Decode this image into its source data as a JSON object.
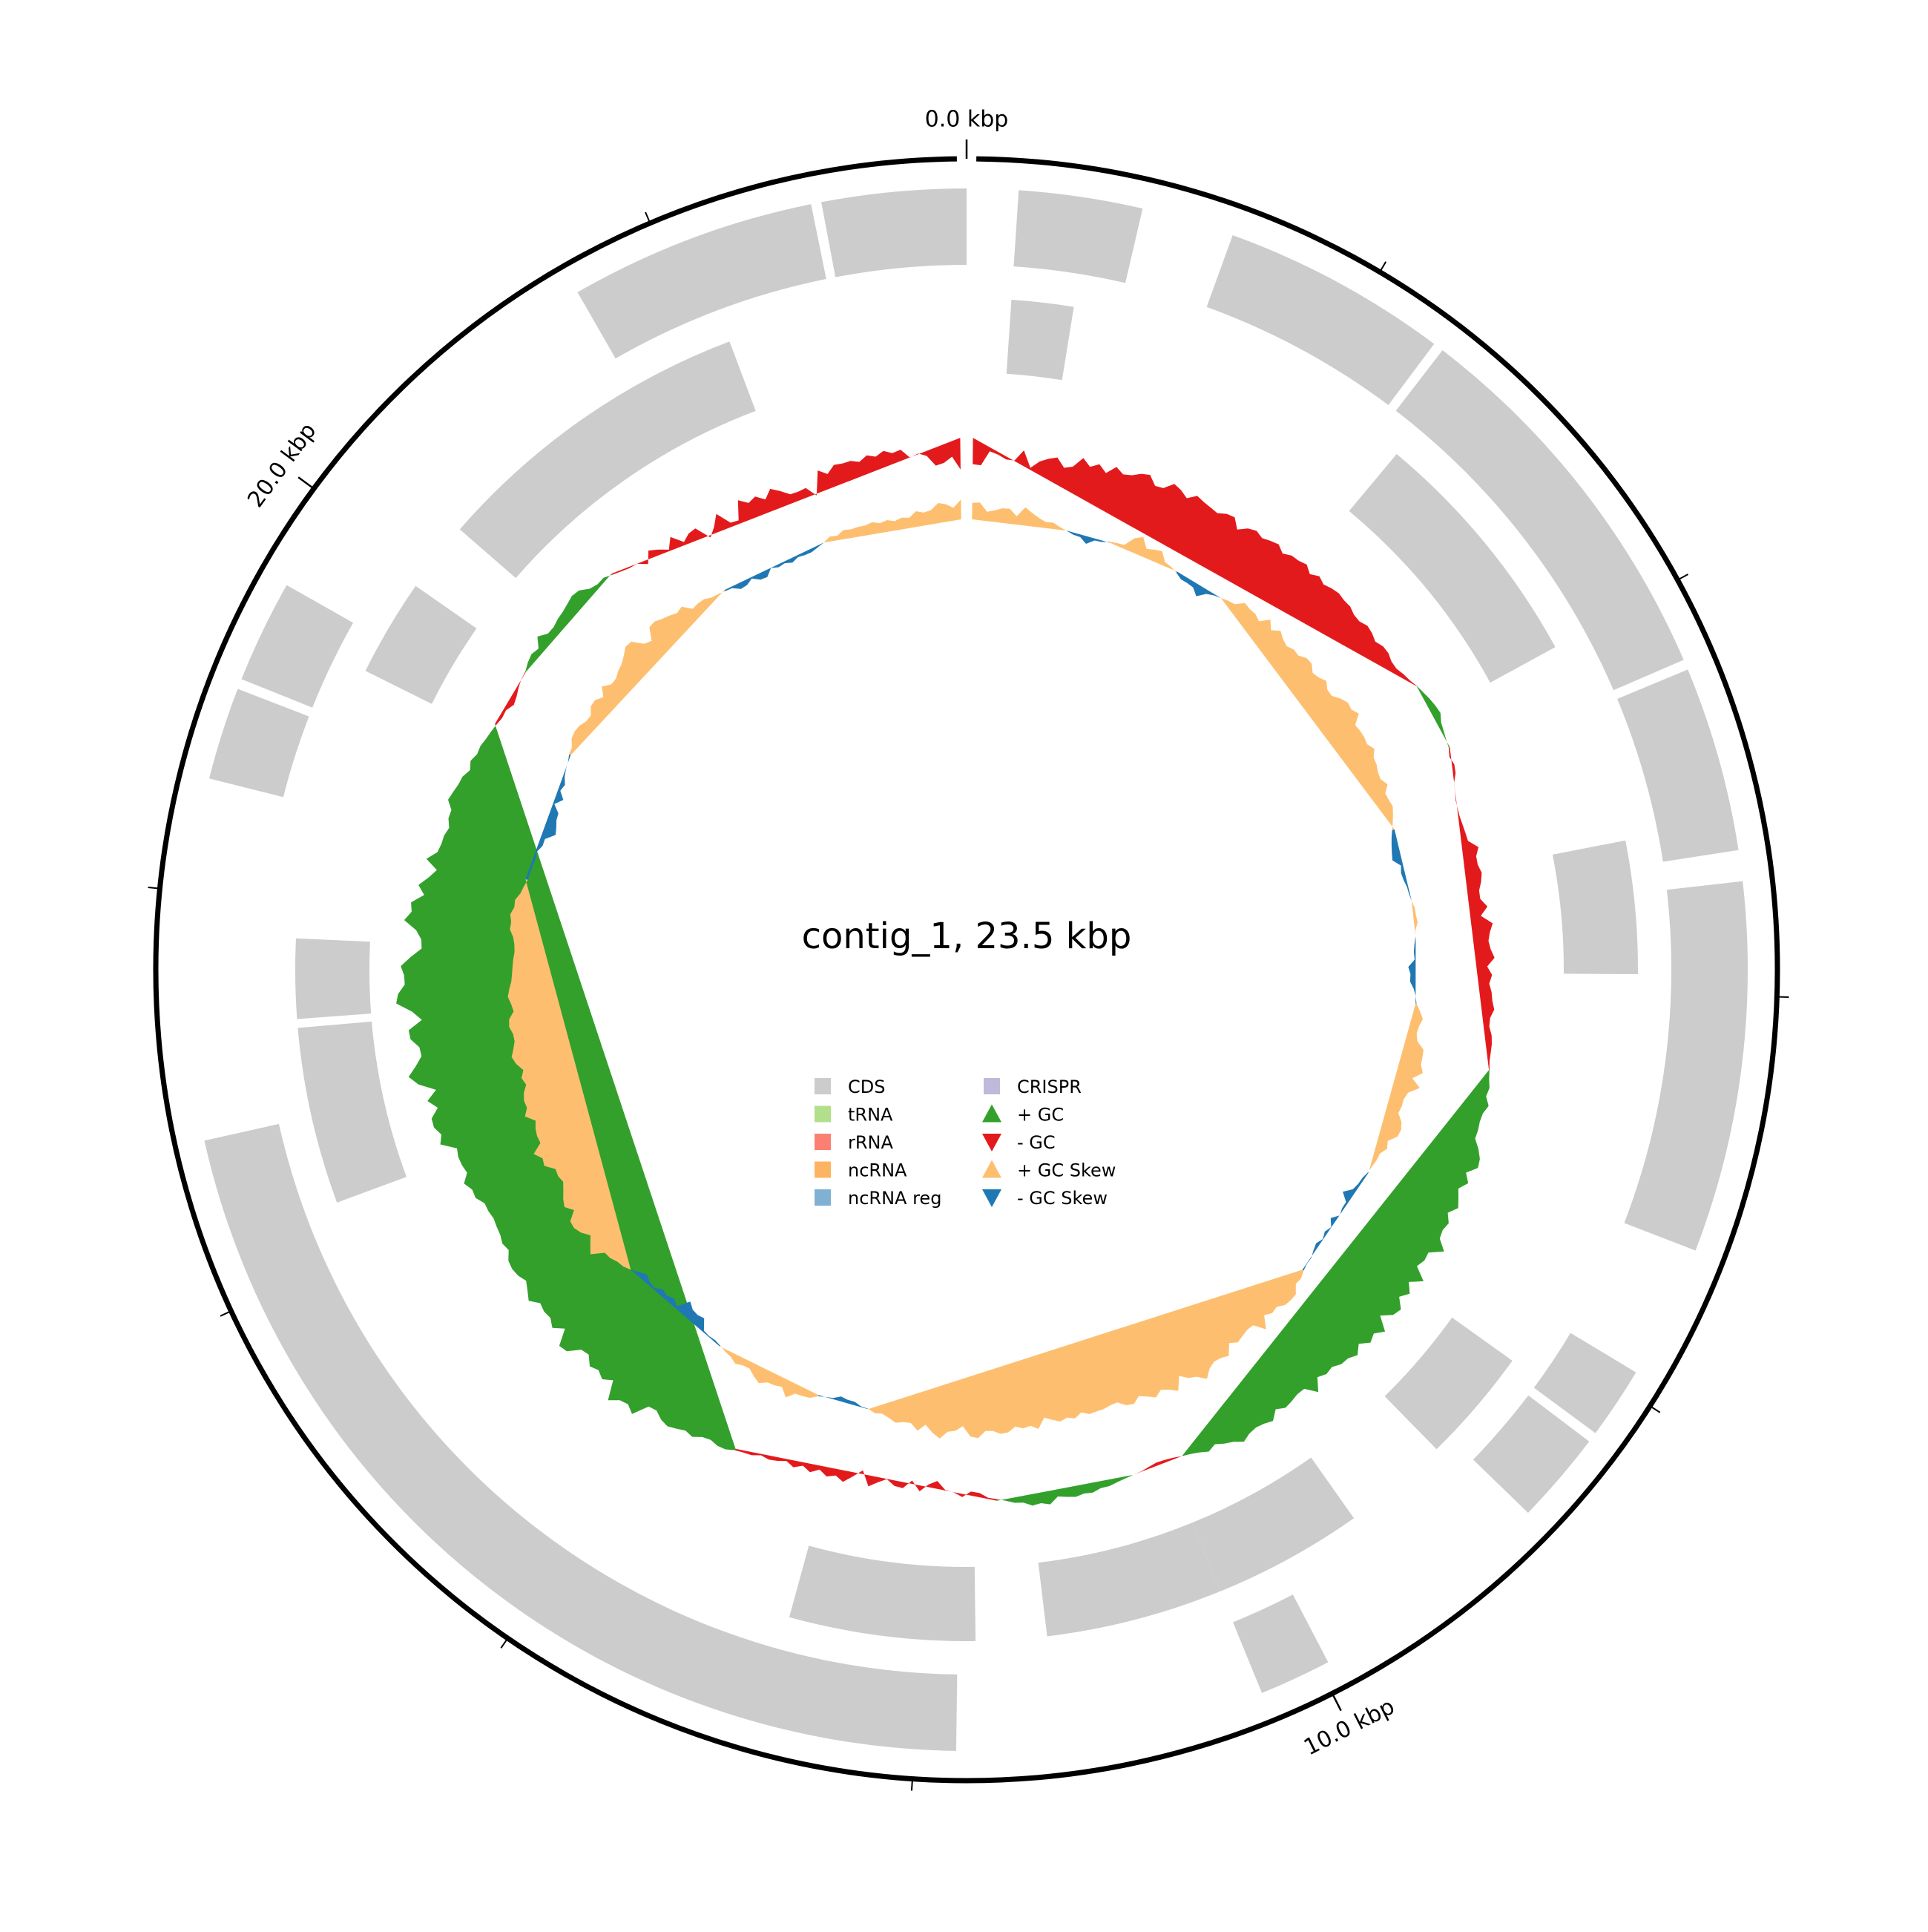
{
  "title": "contig_1, 23.5 kbp",
  "chart_data": {
    "type": "circular-genome-map",
    "genome_length_kbp": 23.5,
    "contig": "contig_1",
    "axis": {
      "major_tick_labels": [
        "0.0 kbp",
        "10.0 kbp",
        "20.0 kbp"
      ],
      "major_tick_positions_kbp": [
        0,
        10,
        20
      ],
      "minor_tick_step_kbp": 2
    },
    "cds_features": [
      {
        "start_kbp": 0.25,
        "end_kbp": 0.85,
        "track": "outer"
      },
      {
        "start_kbp": 1.3,
        "end_kbp": 2.4,
        "track": "outer"
      },
      {
        "start_kbp": 2.45,
        "end_kbp": 4.35,
        "track": "outer"
      },
      {
        "start_kbp": 4.4,
        "end_kbp": 5.3,
        "track": "outer"
      },
      {
        "start_kbp": 5.45,
        "end_kbp": 7.25,
        "track": "outer"
      },
      {
        "start_kbp": 7.9,
        "end_kbp": 8.25,
        "track": "outer"
      },
      {
        "start_kbp": 8.3,
        "end_kbp": 8.75,
        "track": "outer"
      },
      {
        "start_kbp": 9.95,
        "end_kbp": 10.3,
        "track": "outer"
      },
      {
        "start_kbp": 11.8,
        "end_kbp": 16.8,
        "track": "outer"
      },
      {
        "start_kbp": 18.55,
        "end_kbp": 19.0,
        "track": "outer"
      },
      {
        "start_kbp": 19.05,
        "end_kbp": 19.55,
        "track": "outer"
      },
      {
        "start_kbp": 21.55,
        "end_kbp": 22.75,
        "track": "outer"
      },
      {
        "start_kbp": 22.8,
        "end_kbp": 23.5,
        "track": "outer"
      },
      {
        "start_kbp": 2.6,
        "end_kbp": 4.0,
        "track": "inner"
      },
      {
        "start_kbp": 5.15,
        "end_kbp": 5.9,
        "track": "inner"
      },
      {
        "start_kbp": 8.2,
        "end_kbp": 8.85,
        "track": "inner"
      },
      {
        "start_kbp": 9.45,
        "end_kbp": 10.3,
        "track": "inner"
      },
      {
        "start_kbp": 10.3,
        "end_kbp": 11.3,
        "track": "inner"
      },
      {
        "start_kbp": 11.7,
        "end_kbp": 12.75,
        "track": "inner"
      },
      {
        "start_kbp": 16.3,
        "end_kbp": 17.3,
        "track": "inner"
      },
      {
        "start_kbp": 17.35,
        "end_kbp": 17.8,
        "track": "inner"
      },
      {
        "start_kbp": 19.35,
        "end_kbp": 19.9,
        "track": "inner"
      },
      {
        "start_kbp": 20.3,
        "end_kbp": 22.15,
        "track": "inner"
      },
      {
        "start_kbp": 0.25,
        "end_kbp": 0.6,
        "track": "inner"
      }
    ],
    "gc_content_profile": {
      "description": "deviation from mean GC content per window (positive = green, negative = red)",
      "window_kbp": 0.5,
      "values": [
        -0.8,
        -0.5,
        -0.4,
        -0.2,
        -0.3,
        -0.2,
        -0.1,
        -0.3,
        0.2,
        -0.2,
        -0.4,
        -0.3,
        -0.2,
        -0.1,
        0.2,
        0.4,
        0.5,
        0.6,
        0.3,
        0.4,
        0.3,
        -0.1,
        0.1,
        0.2,
        -0.3,
        -0.5,
        -0.3,
        -0.1,
        0.3,
        0.6,
        0.5,
        0.4,
        0.1,
        0.3,
        0.6,
        0.8,
        0.9,
        0.5,
        0.3,
        0.2,
        -0.2,
        0.3,
        0.2,
        -0.4,
        -0.6,
        -0.8,
        -0.6,
        -0.3
      ]
    },
    "gc_skew_profile": {
      "description": "GC skew per window (positive = orange, negative = blue)",
      "window_kbp": 0.5,
      "values": [
        0.5,
        0.3,
        -0.2,
        0.4,
        -0.3,
        0.3,
        0.2,
        0.4,
        0.3,
        0.2,
        -0.3,
        0.1,
        -0.2,
        0.3,
        0.4,
        0.2,
        -0.3,
        -0.2,
        0.3,
        0.4,
        0.5,
        0.3,
        0.2,
        0.3,
        0.4,
        0.3,
        -0.2,
        0.3,
        0.2,
        -0.4,
        -0.3,
        0.5,
        0.3,
        0.4,
        0.2,
        0.3,
        0.1,
        0.2,
        -0.3,
        -0.4,
        0.2,
        0.3,
        0.4,
        0.2,
        -0.2,
        -0.3,
        0.3,
        0.2
      ]
    },
    "legend": {
      "columns": [
        [
          {
            "label": "CDS",
            "color": "#cccccc",
            "marker": "square"
          },
          {
            "label": "tRNA",
            "color": "#b2df8a",
            "marker": "square"
          },
          {
            "label": "rRNA",
            "color": "#fb8072",
            "marker": "square"
          },
          {
            "label": "ncRNA",
            "color": "#fdb462",
            "marker": "square"
          },
          {
            "label": "ncRNA reg",
            "color": "#80b1d3",
            "marker": "square"
          }
        ],
        [
          {
            "label": "CRISPR",
            "color": "#bebada",
            "marker": "square"
          },
          {
            "label": "+ GC",
            "color": "#33a02c",
            "marker": "triangle-up"
          },
          {
            "label": "- GC",
            "color": "#e31a1c",
            "marker": "triangle-down"
          },
          {
            "label": "+ GC Skew",
            "color": "#fdbf6f",
            "marker": "triangle-up"
          },
          {
            "label": "- GC Skew",
            "color": "#1f78b4",
            "marker": "triangle-down"
          }
        ]
      ]
    }
  }
}
